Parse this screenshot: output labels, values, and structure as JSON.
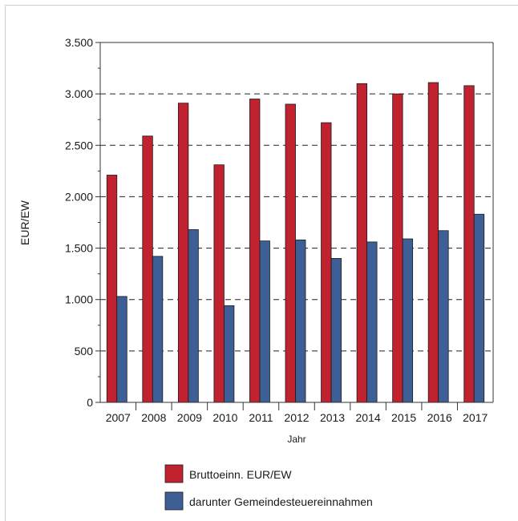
{
  "chart_data": {
    "type": "bar",
    "title": "",
    "xlabel": "Jahr",
    "ylabel": "EUR/EW",
    "categories": [
      "2007",
      "2008",
      "2009",
      "2010",
      "2011",
      "2012",
      "2013",
      "2014",
      "2015",
      "2016",
      "2017"
    ],
    "series": [
      {
        "name": "Bruttoeinn. EUR/EW",
        "color": "#c0222f",
        "values": [
          2210,
          2590,
          2910,
          2310,
          2950,
          2900,
          2720,
          3100,
          3000,
          3110,
          3080
        ]
      },
      {
        "name": "darunter Gemeindesteuereinnahmen",
        "color": "#3e5f96",
        "values": [
          1030,
          1420,
          1680,
          940,
          1570,
          1580,
          1400,
          1560,
          1590,
          1670,
          1830
        ]
      }
    ],
    "ylim": [
      0,
      3500
    ],
    "yticks": [
      0,
      500,
      1000,
      1500,
      2000,
      2500,
      3000,
      3500
    ],
    "ytick_labels": [
      "0",
      "500",
      "1.000",
      "1.500",
      "2.000",
      "2.500",
      "3.000",
      "3.500"
    ],
    "grid": "dashed horizontal at major ticks",
    "legend_position": "bottom"
  }
}
